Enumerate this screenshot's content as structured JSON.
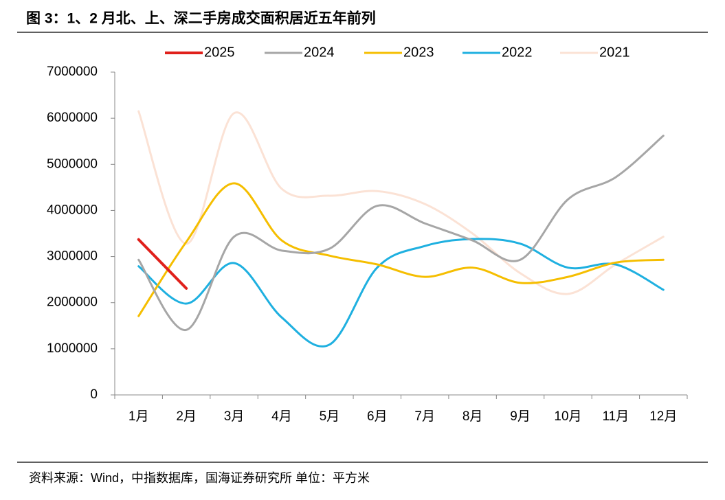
{
  "chart_data": {
    "type": "line",
    "title": "图 3：1、2 月北、上、深二手房成交面积居近五年前列",
    "source": "资料来源：Wind，中指数据库，国海证券研究所   单位：平方米",
    "categories": [
      "1月",
      "2月",
      "3月",
      "4月",
      "5月",
      "6月",
      "7月",
      "8月",
      "9月",
      "10月",
      "11月",
      "12月"
    ],
    "series": [
      {
        "name": "2025",
        "color": "#e0201b",
        "values": [
          3370000,
          2310000,
          null,
          null,
          null,
          null,
          null,
          null,
          null,
          null,
          null,
          null
        ]
      },
      {
        "name": "2024",
        "color": "#a6a6a6",
        "values": [
          2930000,
          1410000,
          3430000,
          3130000,
          3170000,
          4100000,
          3720000,
          3350000,
          2930000,
          4240000,
          4720000,
          5620000
        ]
      },
      {
        "name": "2023",
        "color": "#f5be00",
        "values": [
          1710000,
          3320000,
          4590000,
          3350000,
          3020000,
          2830000,
          2560000,
          2760000,
          2430000,
          2560000,
          2870000,
          2930000
        ]
      },
      {
        "name": "2022",
        "color": "#1fb0e0",
        "values": [
          2790000,
          1980000,
          2860000,
          1680000,
          1090000,
          2760000,
          3230000,
          3380000,
          3280000,
          2760000,
          2830000,
          2280000
        ]
      },
      {
        "name": "2021",
        "color": "#fbe2d5",
        "values": [
          6150000,
          3280000,
          6110000,
          4470000,
          4320000,
          4420000,
          4140000,
          3500000,
          2640000,
          2190000,
          2830000,
          3430000
        ]
      }
    ],
    "ylim": [
      0,
      7000000
    ],
    "yticks": [
      0,
      1000000,
      2000000,
      3000000,
      4000000,
      5000000,
      6000000,
      7000000
    ],
    "legend": "top",
    "grid": false,
    "smooth": true
  }
}
